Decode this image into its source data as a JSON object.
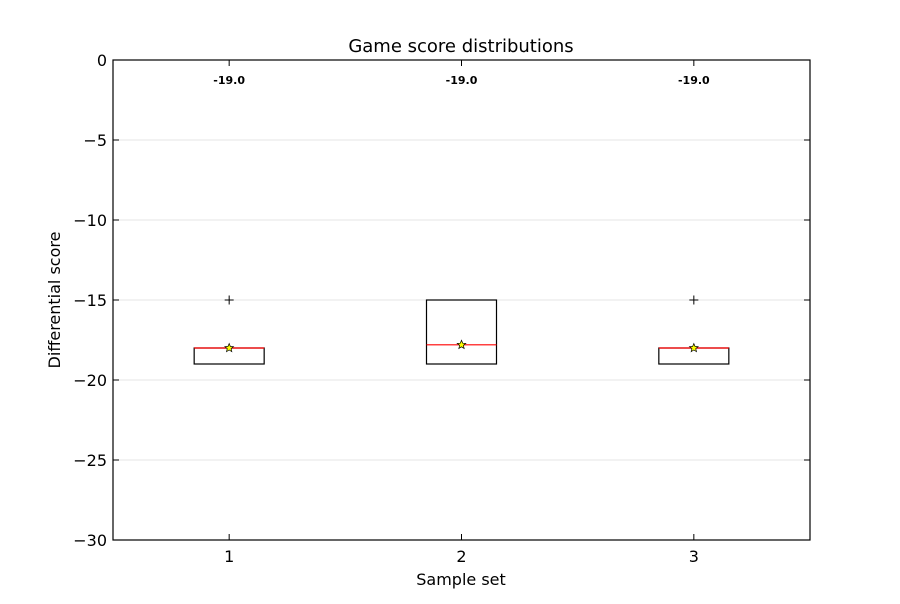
{
  "chart_data": {
    "type": "box",
    "title": "Game score distributions",
    "xlabel": "Sample set",
    "ylabel": "Differential score",
    "ylim": [
      -30,
      0
    ],
    "xlim": [
      0.5,
      3.5
    ],
    "y_ticks": [
      0,
      -5,
      -10,
      -15,
      -20,
      -25,
      -30
    ],
    "y_tick_labels": [
      "0",
      "−5",
      "−10",
      "−15",
      "−20",
      "−25",
      "−30"
    ],
    "grid": true,
    "categories": [
      "1",
      "2",
      "3"
    ],
    "boxes": [
      {
        "x": 1,
        "q1": -19,
        "median": -18,
        "q3": -18,
        "whisker_low": -19,
        "whisker_high": -18,
        "mean": -18.0,
        "outliers": [
          -15
        ],
        "annotation": "-19.0"
      },
      {
        "x": 2,
        "q1": -19,
        "median": -17.8,
        "q3": -15,
        "whisker_low": -19,
        "whisker_high": -15,
        "mean": -17.8,
        "outliers": [],
        "annotation": "-19.0"
      },
      {
        "x": 3,
        "q1": -19,
        "median": -18,
        "q3": -18,
        "whisker_low": -19,
        "whisker_high": -18,
        "mean": -18.0,
        "outliers": [
          -15
        ],
        "annotation": "-19.0"
      }
    ],
    "colors": {
      "median": "#ff0000",
      "box": "#000000",
      "mean_marker": "#ffff00",
      "grid": "#e6e6e6"
    }
  }
}
